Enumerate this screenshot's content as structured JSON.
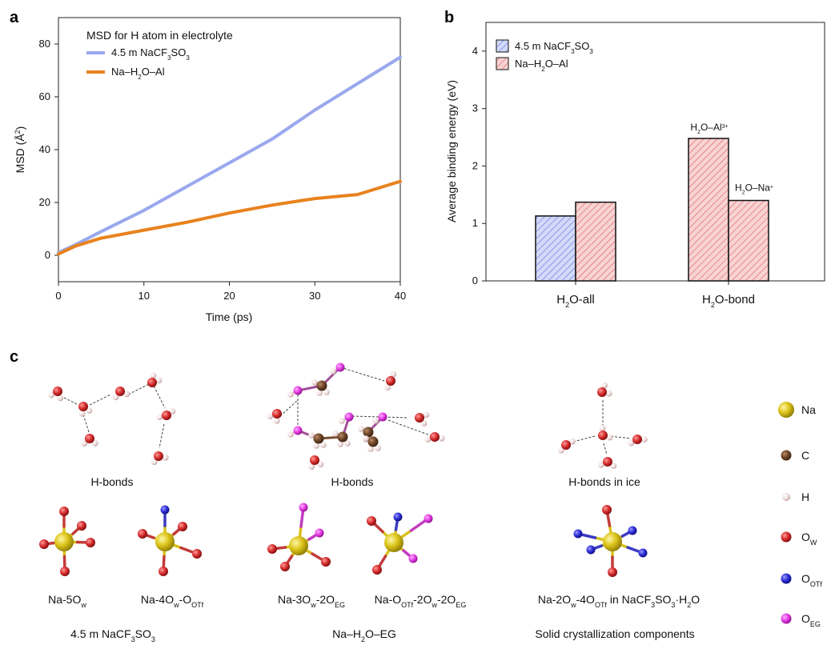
{
  "panels": {
    "a": "a",
    "b": "b",
    "c": "c"
  },
  "chart_data": [
    {
      "type": "line",
      "legend_title": "MSD for H atom in electrolyte",
      "xlabel": "Time (ps)",
      "ylabel_main": "MSD (Å",
      "ylabel_sup": "2",
      "ylabel_end": ")",
      "xlim": [
        0,
        40
      ],
      "ylim": [
        -10,
        90
      ],
      "xticks": [
        0,
        10,
        20,
        30,
        40
      ],
      "yticks": [
        0,
        20,
        40,
        60,
        80
      ],
      "legend_position": "top-left",
      "series": [
        {
          "name_main": "4.5 m NaCF",
          "name_sub": "3",
          "name_mid": "SO",
          "name_sub2": "3",
          "color": "#9aa8ee",
          "x": [
            0,
            2,
            5,
            10,
            15,
            20,
            25,
            30,
            35,
            40
          ],
          "y": [
            1,
            4,
            9,
            17,
            26,
            35,
            44,
            55,
            65,
            75
          ]
        },
        {
          "name_main": "Na–H",
          "name_sub": "2",
          "name_mid": "O–Al",
          "name_sub2": "",
          "color": "#e8821e",
          "x": [
            0,
            2,
            5,
            10,
            15,
            20,
            25,
            30,
            35,
            40
          ],
          "y": [
            0.5,
            3.5,
            6.5,
            9.5,
            12.5,
            16,
            19,
            21.5,
            23,
            28
          ]
        }
      ]
    },
    {
      "type": "bar",
      "ylabel": "Average binding energy (eV)",
      "ylim": [
        0,
        4.5
      ],
      "yticks": [
        0,
        1,
        2,
        3,
        4
      ],
      "categories": [
        "H2O-all",
        "H2O-bond"
      ],
      "category_parts": [
        [
          "H",
          "2",
          "O-all"
        ],
        [
          "H",
          "2",
          "O-bond"
        ]
      ],
      "legend_position": "top-left",
      "series": [
        {
          "name_main": "4.5 m NaCF",
          "name_sub": "3",
          "name_mid": "SO",
          "name_sub2": "3",
          "color": "#6b7ee0",
          "fill": "#c9d0f6",
          "values": [
            1.13,
            null
          ]
        },
        {
          "name_main": "Na–H",
          "name_sub": "2",
          "name_mid": "O–Al",
          "name_sub2": "",
          "color": "#e06a6a",
          "fill": "#f6c9c9",
          "values": [
            1.37,
            2.48
          ]
        },
        {
          "name_main": "",
          "name_sub": "",
          "name_mid": "",
          "name_sub2": "",
          "color": "#e06a6a",
          "fill": "#f6c9c9",
          "values": [
            null,
            1.4
          ]
        }
      ],
      "annotations": [
        {
          "parts": [
            "H",
            "2",
            "O–Al",
            "3+"
          ],
          "value": 2.48
        },
        {
          "parts": [
            "H",
            "2",
            "O–Na",
            "+"
          ],
          "value": 1.4
        }
      ]
    }
  ],
  "panel_c": {
    "top_labels": [
      "H-bonds",
      "H-bonds",
      "H-bonds in ice"
    ],
    "bottom_labels": [
      {
        "parts": [
          "Na-5O",
          "w",
          ""
        ]
      },
      {
        "parts": [
          "Na-4O",
          "w",
          "-O",
          "OTf"
        ]
      },
      {
        "parts": [
          "Na-3O",
          "w",
          "-2O",
          "EG"
        ]
      },
      {
        "parts": [
          "Na-O",
          "OTf",
          "-2O",
          "w",
          "-2O",
          "EG"
        ]
      },
      {
        "parts": [
          "Na-2O",
          "w",
          "-4O",
          "OTf",
          " in NaCF",
          "3",
          "SO",
          "3",
          "·H",
          "2",
          "O"
        ]
      }
    ],
    "group_labels": [
      {
        "parts": [
          "4.5 m NaCF",
          "3",
          "SO",
          "3"
        ]
      },
      {
        "parts": [
          "Na–H",
          "2",
          "O–EG"
        ]
      },
      {
        "parts": [
          "Solid crystallization components"
        ]
      }
    ],
    "atom_legend": [
      {
        "label": "Na",
        "sub": "",
        "color": "#d8c21a"
      },
      {
        "label": "C",
        "sub": "",
        "color": "#6b4226"
      },
      {
        "label": "H",
        "sub": "",
        "color": "#f1dede"
      },
      {
        "label": "O",
        "sub": "W",
        "color": "#d42a2a"
      },
      {
        "label": "O",
        "sub": "OTf",
        "color": "#2a2ad4"
      },
      {
        "label": "O",
        "sub": "EG",
        "color": "#e23ae2"
      }
    ]
  }
}
